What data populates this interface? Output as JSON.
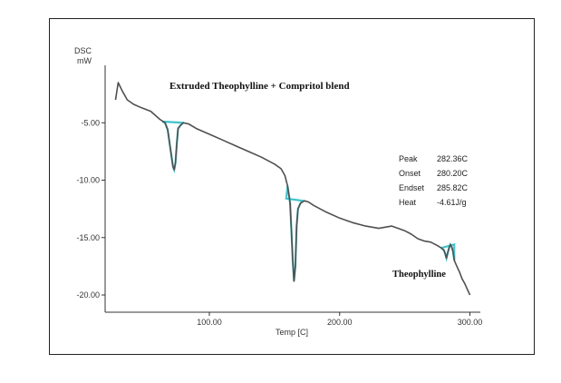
{
  "chart_data": {
    "type": "line",
    "title": "Extruded Theophylline + Compritol blend",
    "ylabel_line1": "DSC",
    "ylabel_line2": "mW",
    "xlabel": "Temp [C]",
    "xlim": [
      20,
      308
    ],
    "ylim": [
      -21.5,
      0
    ],
    "x_ticks": [
      {
        "value": 100,
        "label": "100.00"
      },
      {
        "value": 200,
        "label": "200.00"
      },
      {
        "value": 300,
        "label": "300.00"
      }
    ],
    "y_ticks": [
      {
        "value": -5,
        "label": "-5.00"
      },
      {
        "value": -10,
        "label": "-10.00"
      },
      {
        "value": -15,
        "label": "-15.00"
      },
      {
        "value": -20,
        "label": "-20.00"
      }
    ],
    "series": [
      {
        "color": "#505050",
        "x": [
          28,
          30,
          33,
          37,
          42,
          48,
          55,
          62,
          66,
          68,
          70,
          72,
          73,
          74,
          75,
          76,
          78,
          80,
          84,
          90,
          100,
          110,
          120,
          130,
          140,
          150,
          155,
          158,
          160,
          162,
          163,
          164,
          165,
          166,
          167,
          168,
          170,
          173,
          176,
          180,
          190,
          200,
          210,
          220,
          230,
          240,
          245,
          250,
          255,
          260,
          265,
          270,
          275,
          278,
          280,
          281,
          282,
          283,
          284,
          285,
          286,
          287,
          288,
          290,
          292,
          294,
          296,
          298,
          300
        ],
        "y": [
          -3,
          -1.5,
          -2.2,
          -3.0,
          -3.4,
          -3.7,
          -4.0,
          -4.7,
          -5.0,
          -5.6,
          -7.2,
          -8.8,
          -9.1,
          -8.5,
          -6.8,
          -5.5,
          -5.2,
          -5.0,
          -5.1,
          -5.5,
          -6.0,
          -6.5,
          -7.0,
          -7.5,
          -8.0,
          -8.6,
          -9.0,
          -9.6,
          -10.5,
          -12.0,
          -14.5,
          -17.0,
          -18.8,
          -17.5,
          -14.0,
          -12.5,
          -12.0,
          -11.8,
          -11.9,
          -12.2,
          -12.8,
          -13.3,
          -13.7,
          -14.0,
          -14.2,
          -14.0,
          -14.2,
          -14.4,
          -14.7,
          -15.1,
          -15.3,
          -15.4,
          -15.7,
          -15.9,
          -16.1,
          -16.4,
          -16.8,
          -16.3,
          -15.9,
          -15.6,
          -15.8,
          -16.2,
          -17.0,
          -17.5,
          -18.0,
          -18.6,
          -19.0,
          -19.5,
          -20.0
        ]
      }
    ],
    "baselines": [
      {
        "x": [
          64,
          80
        ],
        "y": [
          -4.9,
          -5.0
        ],
        "color": "#39c0c8"
      },
      {
        "x": [
          159,
          172
        ],
        "y": [
          -11.6,
          -11.8
        ],
        "color": "#39c0c8"
      },
      {
        "x": [
          278,
          288
        ],
        "y": [
          -15.9,
          -15.6
        ],
        "color": "#39c0c8"
      }
    ],
    "peak_table": [
      {
        "label": "Peak",
        "value": "282.36C"
      },
      {
        "label": "Onset",
        "value": "280.20C"
      },
      {
        "label": "Endset",
        "value": "285.82C"
      },
      {
        "label": "Heat",
        "value": "-4.61J/g"
      }
    ],
    "annotation": "Theophylline"
  }
}
